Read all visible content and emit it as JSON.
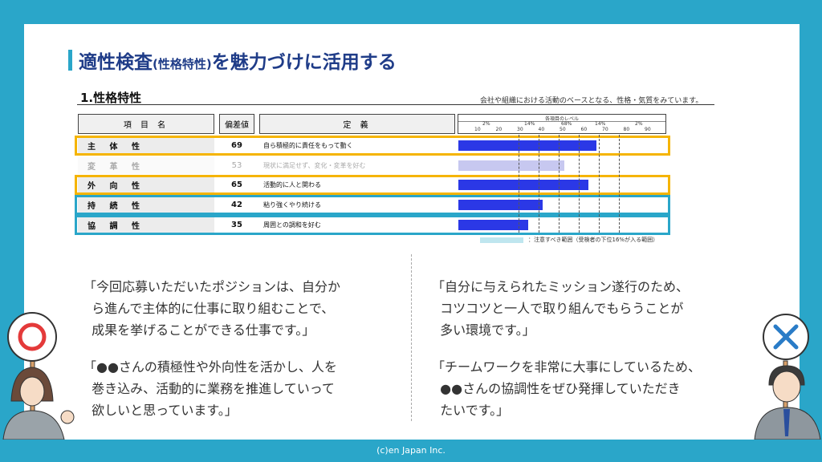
{
  "title": {
    "main": "適性検査",
    "paren": "(性格特性)",
    "rest": "を魅力づけに活用する"
  },
  "section": {
    "title": "1.性格特性",
    "note": "会社や組織における活動のベースとなる、性格・気質をみています。"
  },
  "table": {
    "headers": {
      "name": "項 目 名",
      "value": "偏差値",
      "definition": "定 義",
      "levels": "各項目のレベル"
    },
    "scale_percents": [
      "2%",
      "14%",
      "68%",
      "14%",
      "2%"
    ],
    "scale_ticks": [
      "10",
      "20",
      "30",
      "40",
      "50",
      "60",
      "70",
      "80",
      "90"
    ],
    "rows": [
      {
        "name": "主 体 性",
        "value": "69",
        "definition": "自ら積極的に責任をもって動く",
        "score": 69,
        "faded": false,
        "highlight": "orange"
      },
      {
        "name": "変 革 性",
        "value": "53",
        "definition": "現状に満足せず、変化・変革を好む",
        "score": 53,
        "faded": true,
        "highlight": "none"
      },
      {
        "name": "外 向 性",
        "value": "65",
        "definition": "活動的に人と関わる",
        "score": 65,
        "faded": false,
        "highlight": "orange"
      },
      {
        "name": "持 続 性",
        "value": "42",
        "definition": "粘り強くやり続ける",
        "score": 42,
        "faded": false,
        "highlight": "blue"
      },
      {
        "name": "協 調 性",
        "value": "35",
        "definition": "周囲との調和を好む",
        "score": 35,
        "faded": false,
        "highlight": "blue"
      }
    ],
    "legend": "：注意すべき範囲（受検者の下位16%が入る範囲）"
  },
  "quotes": {
    "left": [
      "「今回応募いただいたポジションは、自分か\n  ら進んで主体的に仕事に取り組むことで、\n  成果を挙げることができる仕事です。」",
      "「●●さんの積極性や外向性を活かし、人を\n  巻き込み、活動的に業務を推進していって\n  欲しいと思っています。」"
    ],
    "right": [
      "「自分に与えられたミッション遂行のため、\n  コツコツと一人で取り組んでもらうことが\n  多い環境です。」",
      "「チームワークを非常に大事にしているため、\n  ●●さんの協調性をぜひ発揮していただき\n  たいです。」"
    ]
  },
  "signs": {
    "left": "○",
    "right": "×"
  },
  "footer": "(c)en Japan Inc.",
  "colors": {
    "accent": "#2aa6c9",
    "title": "#1f3c88",
    "bar": "#2b38e6",
    "orange": "#f5b400",
    "blue": "#2aa6c9"
  },
  "icons": {
    "left_sign": "circle-sign-icon",
    "right_sign": "cross-sign-icon"
  }
}
